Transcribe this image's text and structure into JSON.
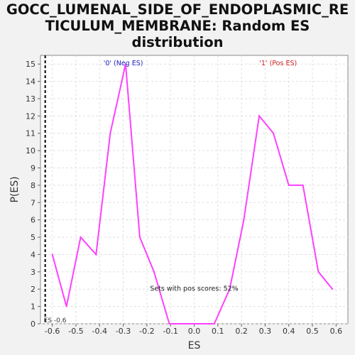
{
  "chart_data": {
    "type": "line",
    "title_lines": [
      "GOCC_LUMENAL_SIDE_OF_ENDOPLASMIC_RE",
      "TICULUM_MEMBRANE: Random ES",
      "distribution"
    ],
    "xlabel": "ES",
    "ylabel": "P(ES)",
    "xlim": [
      -0.65,
      0.65
    ],
    "ylim": [
      0,
      15.5
    ],
    "x_ticks": [
      "-0.6",
      "-0.5",
      "-0.4",
      "-0.3",
      "-0.2",
      "-0.1",
      "0.0",
      "0.1",
      "0.2",
      "0.3",
      "0.4",
      "0.5",
      "0.6"
    ],
    "y_ticks": [
      "0",
      "1",
      "2",
      "3",
      "4",
      "5",
      "6",
      "7",
      "8",
      "9",
      "10",
      "11",
      "12",
      "13",
      "14",
      "15"
    ],
    "series": [
      {
        "color": "#ff40ff",
        "x": [
          -0.6,
          -0.54,
          -0.48,
          -0.415,
          -0.355,
          -0.29,
          -0.23,
          -0.17,
          -0.105,
          -0.04,
          0.025,
          0.085,
          0.15,
          0.21,
          0.275,
          0.335,
          0.4,
          0.46,
          0.525,
          0.585
        ],
        "y": [
          4,
          1,
          5,
          4,
          11,
          15,
          5,
          3,
          0,
          0,
          0,
          0,
          2,
          6,
          12,
          11,
          8,
          8,
          3,
          2
        ]
      }
    ],
    "annotations": {
      "neg_label": "'0' (Neg ES)",
      "pos_label": "'1' (Pos ES)",
      "sets_text": "Sets with pos scores: 52%",
      "es_marker_label": "ES -0.6",
      "es_marker_x": -0.63
    },
    "colors": {
      "neg": "#2020c0",
      "pos": "#d02020",
      "grid": "#e0e0e0"
    },
    "grid": true
  }
}
